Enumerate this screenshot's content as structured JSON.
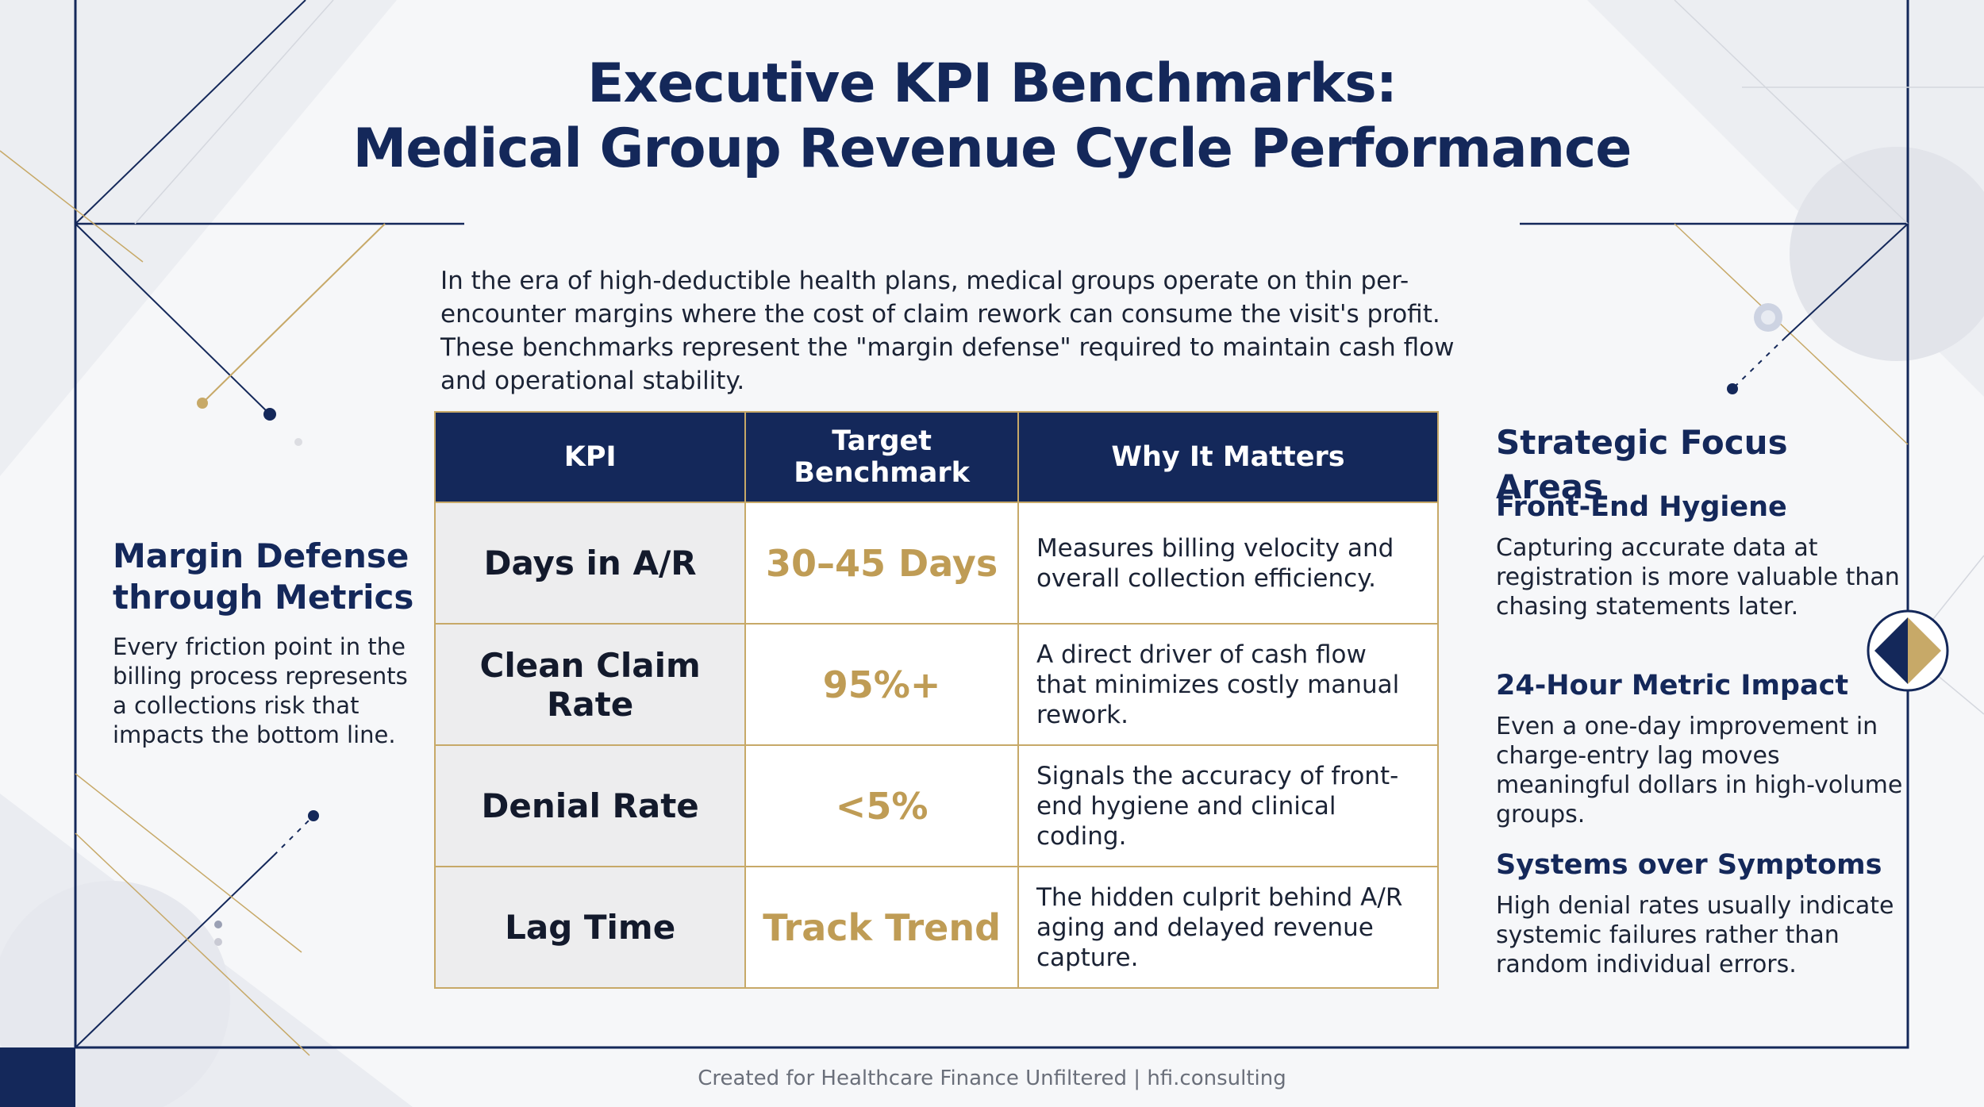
{
  "title": {
    "line1": "Executive KPI Benchmarks:",
    "line2": "Medical Group Revenue Cycle Performance"
  },
  "intro": "In the era of high-deductible health plans, medical groups operate on thin per-encounter margins where the cost of claim rework can consume the visit's profit. These benchmarks represent the \"margin defense\" required to maintain cash flow and operational stability.",
  "left_panel": {
    "heading": "Margin Defense through Metrics",
    "text": "Every friction point in the billing process represents a collections risk that impacts the bottom line."
  },
  "table": {
    "headers": [
      "KPI",
      "Target Benchmark",
      "Why It Matters"
    ],
    "rows": [
      {
        "kpi": "Days in A/R",
        "target": "30–45 Days",
        "why": "Measures billing velocity and overall collection efficiency."
      },
      {
        "kpi": "Clean Claim Rate",
        "target": "95%+",
        "why": "A direct driver of cash flow that minimizes costly manual rework."
      },
      {
        "kpi": "Denial Rate",
        "target": "<5%",
        "why": "Signals the accuracy of front-end hygiene and clinical coding."
      },
      {
        "kpi": "Lag Time",
        "target": "Track Trend",
        "why": "The hidden culprit behind A/R aging and delayed revenue capture."
      }
    ]
  },
  "right_panel": {
    "title": "Strategic Focus Areas",
    "sections": [
      {
        "heading": "Front-End Hygiene",
        "text": "Capturing accurate data at registration is more valuable than chasing statements later."
      },
      {
        "heading": "24-Hour Metric Impact",
        "text": "Even a one-day improvement in charge-entry lag moves meaningful dollars in high-volume groups."
      },
      {
        "heading": "Systems over Symptoms",
        "text": "High denial rates usually indicate systemic failures rather than random individual errors."
      }
    ]
  },
  "footer": "Created for Healthcare Finance Unfiltered | hfi.consulting",
  "colors": {
    "navy": "#14285a",
    "gold": "#c7a968",
    "gold_text": "#bf9c55",
    "background": "#f6f7f9"
  }
}
